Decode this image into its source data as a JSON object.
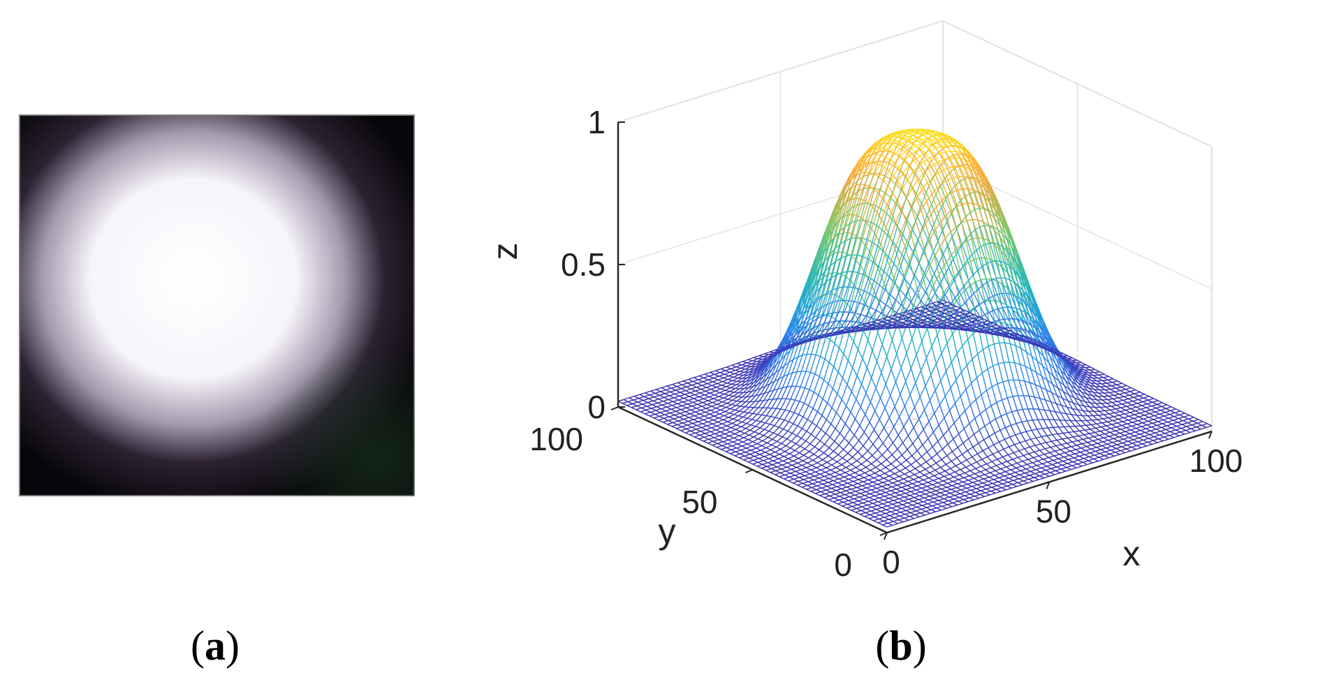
{
  "figure": {
    "panels": [
      {
        "label_paren_open": "(",
        "label": "a",
        "label_paren_close": ")"
      },
      {
        "label_paren_open": "(",
        "label": "b",
        "label_paren_close": ")"
      }
    ]
  },
  "chart_data": {
    "type": "surface",
    "title": "",
    "xlabel": "x",
    "ylabel": "y",
    "zlabel": "z",
    "xlim": [
      0,
      100
    ],
    "ylim": [
      0,
      100
    ],
    "zlim": [
      0,
      1
    ],
    "xticks": [
      "0",
      "50",
      "100"
    ],
    "yticks": [
      "0",
      "50",
      "100"
    ],
    "zticks": [
      "0",
      "0.5",
      "1"
    ],
    "surface": {
      "shape": "flat-top bell",
      "peak_z": 0.95,
      "center_x": 55,
      "center_y": 55,
      "half_width": 28,
      "baseline_z": 0.02
    },
    "colormap": [
      "#3e26a8",
      "#2e83f2",
      "#1fb6c1",
      "#76c96b",
      "#ffa539",
      "#f9fb15"
    ],
    "grid": true,
    "legend": "none"
  },
  "image_panel": {
    "type": "intensity-image",
    "background_color": "#08060a",
    "spot_color": "#ffffff"
  }
}
